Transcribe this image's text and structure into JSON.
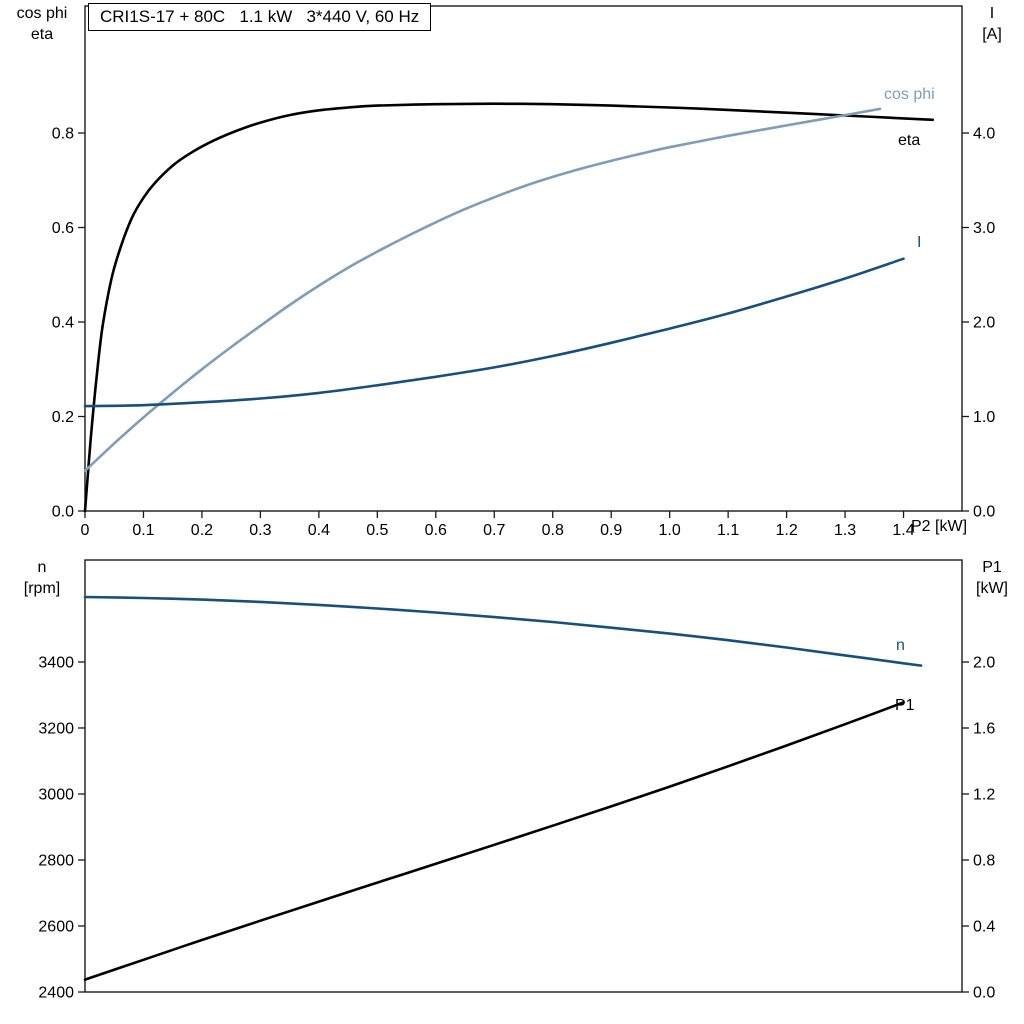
{
  "colors": {
    "black": "#000000",
    "dark_blue": "#17507E",
    "light_blue": "#7F9DB9",
    "border": "#1a1a1a"
  },
  "chart_data": [
    {
      "id": "top",
      "type": "line",
      "title": "CRI1S-17 + 80C   1.1 kW   3*440 V, 60 Hz",
      "grid": false,
      "x_axis": {
        "label": "P2 [kW]",
        "min": 0,
        "max": 1.5,
        "ticks": [
          0,
          0.1,
          0.2,
          0.3,
          0.4,
          0.5,
          0.6,
          0.7,
          0.8,
          0.9,
          1.0,
          1.1,
          1.2,
          1.3,
          1.4
        ],
        "tick_labels": [
          "0",
          "0.1",
          "0.2",
          "0.3",
          "0.4",
          "0.5",
          "0.6",
          "0.7",
          "0.8",
          "0.9",
          "1.0",
          "1.1",
          "1.2",
          "1.3",
          "1.4"
        ]
      },
      "left_axis": {
        "title_lines": [
          "cos phi",
          "eta"
        ],
        "min": 0,
        "max": 1.0688,
        "ticks": [
          0,
          0.2,
          0.4,
          0.6,
          0.8
        ],
        "tick_labels": [
          "0.0",
          "0.2",
          "0.4",
          "0.6",
          "0.8"
        ]
      },
      "right_axis": {
        "title_lines": [
          "I",
          "[A]"
        ],
        "min": 0,
        "max": 5.344,
        "ticks": [
          0,
          1,
          2,
          3,
          4
        ],
        "tick_labels": [
          "0.0",
          "1.0",
          "2.0",
          "3.0",
          "4.0"
        ]
      },
      "series": [
        {
          "name": "eta",
          "label": "eta",
          "color": "black",
          "axis": "left",
          "points": [
            [
              0,
              0
            ],
            [
              0.01,
              0.155
            ],
            [
              0.02,
              0.285
            ],
            [
              0.03,
              0.39
            ],
            [
              0.045,
              0.49
            ],
            [
              0.06,
              0.555
            ],
            [
              0.08,
              0.62
            ],
            [
              0.1,
              0.663
            ],
            [
              0.12,
              0.695
            ],
            [
              0.15,
              0.731
            ],
            [
              0.18,
              0.757
            ],
            [
              0.22,
              0.784
            ],
            [
              0.26,
              0.805
            ],
            [
              0.3,
              0.822
            ],
            [
              0.35,
              0.838
            ],
            [
              0.4,
              0.848
            ],
            [
              0.45,
              0.854
            ],
            [
              0.5,
              0.858
            ],
            [
              0.6,
              0.861
            ],
            [
              0.7,
              0.862
            ],
            [
              0.8,
              0.861
            ],
            [
              0.9,
              0.858
            ],
            [
              1,
              0.854
            ],
            [
              1.1,
              0.849
            ],
            [
              1.2,
              0.843
            ],
            [
              1.3,
              0.837
            ],
            [
              1.4,
              0.831
            ],
            [
              1.45,
              0.828
            ]
          ]
        },
        {
          "name": "cos phi",
          "label": "cos phi",
          "color": "light_blue",
          "axis": "left",
          "points": [
            [
              0,
              0.085
            ],
            [
              0.05,
              0.143
            ],
            [
              0.1,
              0.198
            ],
            [
              0.15,
              0.25
            ],
            [
              0.2,
              0.3
            ],
            [
              0.25,
              0.347
            ],
            [
              0.3,
              0.392
            ],
            [
              0.35,
              0.436
            ],
            [
              0.4,
              0.477
            ],
            [
              0.45,
              0.515
            ],
            [
              0.5,
              0.549
            ],
            [
              0.55,
              0.581
            ],
            [
              0.6,
              0.611
            ],
            [
              0.65,
              0.639
            ],
            [
              0.7,
              0.664
            ],
            [
              0.75,
              0.687
            ],
            [
              0.8,
              0.707
            ],
            [
              0.85,
              0.725
            ],
            [
              0.9,
              0.741
            ],
            [
              0.95,
              0.756
            ],
            [
              1,
              0.77
            ],
            [
              1.1,
              0.794
            ],
            [
              1.2,
              0.816
            ],
            [
              1.3,
              0.838
            ],
            [
              1.36,
              0.851
            ]
          ]
        },
        {
          "name": "I",
          "label": "I",
          "color": "dark_blue",
          "axis": "right",
          "points": [
            [
              0,
              1.11
            ],
            [
              0.1,
              1.12
            ],
            [
              0.2,
              1.15
            ],
            [
              0.3,
              1.19
            ],
            [
              0.4,
              1.25
            ],
            [
              0.5,
              1.33
            ],
            [
              0.6,
              1.42
            ],
            [
              0.7,
              1.52
            ],
            [
              0.8,
              1.64
            ],
            [
              0.9,
              1.78
            ],
            [
              1,
              1.93
            ],
            [
              1.1,
              2.09
            ],
            [
              1.2,
              2.27
            ],
            [
              1.3,
              2.46
            ],
            [
              1.4,
              2.67
            ]
          ]
        }
      ]
    },
    {
      "id": "bottom",
      "type": "line",
      "title": "",
      "grid": false,
      "x_axis": {
        "label": "",
        "min": 0,
        "max": 1.5,
        "ticks": [],
        "tick_labels": []
      },
      "left_axis": {
        "title_lines": [
          "n",
          "[rpm]"
        ],
        "min": 2400,
        "max": 3709,
        "ticks": [
          2400,
          2600,
          2800,
          3000,
          3200,
          3400
        ],
        "tick_labels": [
          "2400",
          "2600",
          "2800",
          "3000",
          "3200",
          "3400"
        ]
      },
      "right_axis": {
        "title_lines": [
          "P1",
          "[kW]"
        ],
        "min": 0,
        "max": 2.6182,
        "ticks": [
          0,
          0.4,
          0.8,
          1.2,
          1.6,
          2.0
        ],
        "tick_labels": [
          "0.0",
          "0.4",
          "0.8",
          "1.2",
          "1.6",
          "2.0"
        ]
      },
      "series": [
        {
          "name": "n",
          "label": "n",
          "color": "dark_blue",
          "axis": "left",
          "points": [
            [
              0,
              3597
            ],
            [
              0.1,
              3594
            ],
            [
              0.2,
              3589
            ],
            [
              0.3,
              3582
            ],
            [
              0.4,
              3573
            ],
            [
              0.5,
              3562
            ],
            [
              0.6,
              3550
            ],
            [
              0.7,
              3536
            ],
            [
              0.8,
              3521
            ],
            [
              0.9,
              3504
            ],
            [
              1,
              3486
            ],
            [
              1.1,
              3466
            ],
            [
              1.2,
              3444
            ],
            [
              1.3,
              3420
            ],
            [
              1.4,
              3396
            ],
            [
              1.43,
              3389
            ]
          ]
        },
        {
          "name": "P1",
          "label": "P1",
          "color": "black",
          "axis": "right",
          "points": [
            [
              0,
              0.075
            ],
            [
              0.1,
              0.195
            ],
            [
              0.2,
              0.315
            ],
            [
              0.3,
              0.432
            ],
            [
              0.4,
              0.548
            ],
            [
              0.5,
              0.663
            ],
            [
              0.6,
              0.777
            ],
            [
              0.7,
              0.892
            ],
            [
              0.8,
              1.008
            ],
            [
              0.9,
              1.125
            ],
            [
              1,
              1.245
            ],
            [
              1.1,
              1.368
            ],
            [
              1.2,
              1.494
            ],
            [
              1.3,
              1.623
            ],
            [
              1.4,
              1.755
            ]
          ]
        }
      ]
    }
  ]
}
